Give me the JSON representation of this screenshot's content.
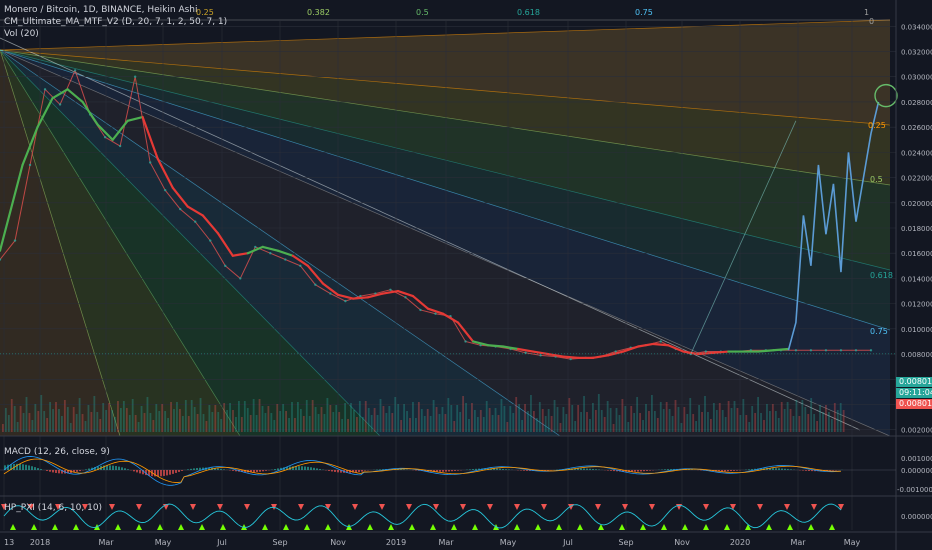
{
  "legend": {
    "symbol": "Monero / Bitcoin, 1D, BINANCE, Heikin Ashi",
    "ma_indicator": "CM_Ultimate_MA_MTF_V2 (D, 20, 7, 1, 2, 50, 7, 1)",
    "volume": "Vol (20)"
  },
  "macd_pane": {
    "label": "MACD (12, 26, close, 9)"
  },
  "pxi_pane": {
    "label": "HP_PXI (14, 6, 10, 10)"
  },
  "fib_levels_top": [
    "0.25",
    "0.382",
    "0.5",
    "0.618",
    "0.75",
    "1"
  ],
  "fib_level_zero": "0",
  "fib_fan_right_labels": [
    "0.25",
    "0.5",
    "0.618",
    "0.75"
  ],
  "price_tags": {
    "last_price": "0.008014",
    "countdown": "09:11:04",
    "ma_value": "0.008013"
  },
  "colors": {
    "background": "#131722",
    "ma_up": "#4caf50",
    "ma_down": "#e53935",
    "projection": "#5b9bd5",
    "price_tag": "#26a69a",
    "ma_tag": "#ef5350",
    "circle": "#66bb6a"
  },
  "chart_data": {
    "type": "line",
    "title": "Monero / Bitcoin, 1D, BINANCE, Heikin Ashi",
    "x_tick_labels": [
      "13",
      "2018",
      "Mar",
      "May",
      "Jul",
      "Sep",
      "Nov",
      "2019",
      "Mar",
      "May",
      "Jul",
      "Sep",
      "Nov",
      "2020",
      "Mar",
      "May"
    ],
    "y_tick_labels": [
      "0.034000",
      "0.032000",
      "0.030000",
      "0.028000",
      "0.026000",
      "0.024000",
      "0.022000",
      "0.020000",
      "0.018000",
      "0.016000",
      "0.014000",
      "0.012000",
      "0.010000",
      "0.008000",
      "0.006000",
      "0.004000",
      "0.002000"
    ],
    "ylim": [
      0.0015,
      0.0345
    ],
    "x_range": [
      0,
      118
    ],
    "grid": true,
    "price_series": {
      "name": "XMR/BTC",
      "x": [
        0,
        2,
        4,
        6,
        8,
        10,
        12,
        14,
        16,
        18,
        20,
        22,
        24,
        26,
        28,
        30,
        32,
        34,
        36,
        38,
        40,
        42,
        44,
        46,
        48,
        50,
        52,
        54,
        56,
        58,
        60,
        62,
        64,
        66,
        68,
        70,
        72,
        74,
        76,
        78,
        80,
        82,
        84,
        86,
        88,
        90,
        92,
        94,
        96,
        98,
        100,
        102,
        104,
        106,
        108,
        110,
        112,
        114,
        116
      ],
      "y": [
        0.0155,
        0.017,
        0.023,
        0.029,
        0.0278,
        0.0305,
        0.027,
        0.0252,
        0.0245,
        0.03,
        0.0232,
        0.021,
        0.0195,
        0.0185,
        0.017,
        0.015,
        0.014,
        0.0165,
        0.016,
        0.0155,
        0.015,
        0.0135,
        0.0128,
        0.0122,
        0.0126,
        0.0128,
        0.0131,
        0.0125,
        0.0115,
        0.0112,
        0.011,
        0.009,
        0.0087,
        0.0086,
        0.0084,
        0.0081,
        0.0079,
        0.0078,
        0.0076,
        0.0077,
        0.0078,
        0.0082,
        0.0085,
        0.0087,
        0.009,
        0.0084,
        0.008,
        0.0082,
        0.0082,
        0.0082,
        0.0083,
        0.0083,
        0.0083,
        0.0083,
        0.0083,
        0.0083,
        0.0083,
        0.0083,
        0.0083
      ]
    },
    "ma_series": {
      "x": [
        0,
        3,
        5,
        7,
        9,
        11,
        13,
        15,
        17,
        19,
        21,
        23,
        25,
        27,
        29,
        31,
        33,
        35,
        37,
        39,
        41,
        43,
        45,
        47,
        49,
        51,
        53,
        55,
        57,
        59,
        61,
        63,
        65,
        67,
        69,
        71,
        73,
        75,
        77,
        79,
        81,
        83,
        85,
        87,
        89,
        91,
        93,
        95,
        97,
        99,
        101,
        103,
        105
      ],
      "y": [
        0.0162,
        0.023,
        0.026,
        0.0283,
        0.029,
        0.028,
        0.0262,
        0.025,
        0.0265,
        0.0268,
        0.0235,
        0.0212,
        0.0197,
        0.019,
        0.0176,
        0.0158,
        0.016,
        0.0165,
        0.0162,
        0.0158,
        0.015,
        0.0136,
        0.0127,
        0.0124,
        0.0125,
        0.0128,
        0.013,
        0.0126,
        0.0116,
        0.0112,
        0.0105,
        0.009,
        0.0087,
        0.0086,
        0.0084,
        0.0082,
        0.008,
        0.0078,
        0.0077,
        0.0077,
        0.0079,
        0.0082,
        0.0086,
        0.0088,
        0.0087,
        0.0082,
        0.008,
        0.0081,
        0.0082,
        0.0082,
        0.0082,
        0.0083,
        0.0084
      ],
      "up_segments": [
        [
          0,
          9
        ],
        [
          16,
          19
        ],
        [
          31,
          34
        ],
        [
          48,
          52
        ],
        [
          78,
          87
        ],
        [
          95,
          105
        ]
      ]
    },
    "projection_series": {
      "name": "projection",
      "x": [
        105,
        106,
        107,
        108,
        109,
        110,
        111,
        112,
        113,
        114,
        115,
        116,
        117
      ],
      "y": [
        0.0083,
        0.0105,
        0.019,
        0.015,
        0.023,
        0.0175,
        0.0215,
        0.0145,
        0.024,
        0.0185,
        0.022,
        0.0255,
        0.028
      ]
    },
    "macd": {
      "ylim": [
        -0.0018,
        0.0016
      ],
      "y_tick_labels": [
        "0.001000",
        "0.000000",
        "-0.001000"
      ]
    },
    "pxi": {
      "ylim": [
        -1,
        1
      ],
      "y_tick_labels": [
        "0.000000"
      ]
    }
  }
}
